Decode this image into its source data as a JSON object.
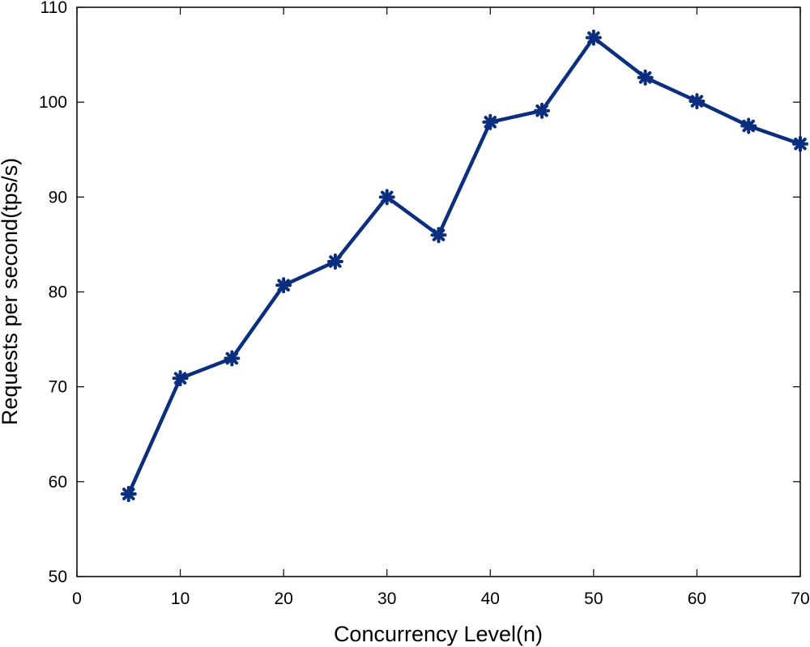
{
  "chart_data": {
    "type": "line",
    "title": "",
    "xlabel": "Concurrency Level(n)",
    "ylabel": "Requests per second(tps/s)",
    "xlim": [
      0,
      70
    ],
    "ylim": [
      50,
      110
    ],
    "xticks": [
      0,
      10,
      20,
      30,
      40,
      50,
      60,
      70
    ],
    "yticks": [
      50,
      60,
      70,
      80,
      90,
      100,
      110
    ],
    "grid": false,
    "legend": "none",
    "series": [
      {
        "color": "#0b2f7e",
        "marker": "asterisk",
        "x": [
          5,
          10,
          15,
          20,
          25,
          30,
          35,
          40,
          45,
          50,
          55,
          60,
          65,
          70
        ],
        "y": [
          58.7,
          70.9,
          73.0,
          80.7,
          83.2,
          90.0,
          86.0,
          97.9,
          99.1,
          106.8,
          102.6,
          100.1,
          97.5,
          95.6
        ]
      }
    ]
  }
}
